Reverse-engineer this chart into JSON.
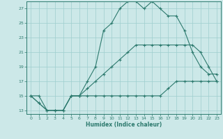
{
  "title": "",
  "xlabel": "Humidex (Indice chaleur)",
  "bg_color": "#cce8e8",
  "line_color": "#2d7a6e",
  "grid_color": "#9ecece",
  "xlim": [
    -0.5,
    23.5
  ],
  "ylim": [
    12.5,
    28.0
  ],
  "xticks": [
    0,
    1,
    2,
    3,
    4,
    5,
    6,
    7,
    8,
    9,
    10,
    11,
    12,
    13,
    14,
    15,
    16,
    17,
    18,
    19,
    20,
    21,
    22,
    23
  ],
  "yticks": [
    13,
    15,
    17,
    19,
    21,
    23,
    25,
    27
  ],
  "series": [
    {
      "x": [
        0,
        1,
        2,
        3,
        4,
        5,
        6,
        7,
        8,
        9,
        10,
        11,
        12,
        13,
        14,
        15,
        16,
        17,
        18,
        19,
        20,
        21,
        22,
        23
      ],
      "y": [
        15,
        15,
        13,
        13,
        13,
        15,
        15,
        17,
        19,
        24,
        25,
        27,
        28,
        28,
        27,
        28,
        27,
        26,
        26,
        24,
        21,
        19,
        18,
        18
      ]
    },
    {
      "x": [
        0,
        1,
        2,
        3,
        4,
        5,
        6,
        7,
        8,
        9,
        10,
        11,
        12,
        13,
        14,
        15,
        16,
        17,
        18,
        19,
        20,
        21,
        22,
        23
      ],
      "y": [
        15,
        14,
        13,
        13,
        13,
        15,
        15,
        16,
        17,
        18,
        19,
        20,
        21,
        22,
        22,
        22,
        22,
        22,
        22,
        22,
        22,
        21,
        19,
        17
      ]
    },
    {
      "x": [
        0,
        1,
        2,
        3,
        4,
        5,
        6,
        7,
        8,
        9,
        10,
        11,
        12,
        13,
        14,
        15,
        16,
        17,
        18,
        19,
        20,
        21,
        22,
        23
      ],
      "y": [
        15,
        14,
        13,
        13,
        13,
        15,
        15,
        15,
        15,
        15,
        15,
        15,
        15,
        15,
        15,
        15,
        15,
        16,
        17,
        17,
        17,
        17,
        17,
        17
      ]
    }
  ]
}
